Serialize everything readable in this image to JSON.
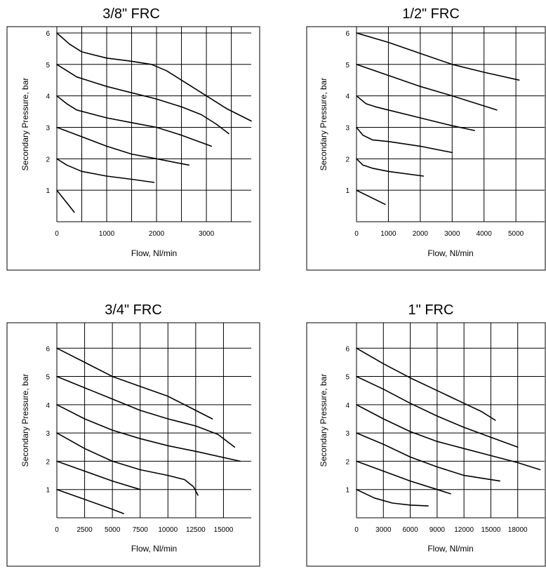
{
  "colors": {
    "line": "#000000",
    "grid": "#000000",
    "background": "#ffffff"
  },
  "chart_data": [
    {
      "type": "line",
      "title": "3/8\" FRC",
      "xlabel": "Flow,  Nl/min",
      "ylabel": "Secondary Pressure, bar",
      "xlim": [
        0,
        3900
      ],
      "ylim": [
        0,
        6.2
      ],
      "xticks": [
        0,
        1000,
        2000,
        3000
      ],
      "xtick_labels": [
        "0",
        "1000",
        "2000",
        "3000"
      ],
      "yticks": [
        1,
        2,
        3,
        4,
        5,
        6
      ],
      "ytick_labels": [
        "1",
        "2",
        "3",
        "4",
        "5",
        "6"
      ],
      "grid_x": [
        0,
        500,
        1000,
        1500,
        2000,
        2500,
        3000,
        3500
      ],
      "grid_y": [
        1,
        2,
        3,
        4,
        5,
        6
      ],
      "grid": true,
      "series": [
        {
          "x": [
            0,
            250,
            500,
            1000,
            1500,
            1900,
            2200,
            2600,
            3000,
            3400,
            3900
          ],
          "y": [
            6,
            5.65,
            5.4,
            5.2,
            5.1,
            5.0,
            4.8,
            4.4,
            4.0,
            3.6,
            3.2
          ]
        },
        {
          "x": [
            0,
            400,
            1000,
            1500,
            2000,
            2500,
            2900,
            3200,
            3450
          ],
          "y": [
            5,
            4.6,
            4.3,
            4.1,
            3.9,
            3.65,
            3.4,
            3.1,
            2.8
          ]
        },
        {
          "x": [
            0,
            200,
            400,
            1000,
            1500,
            2000,
            2500,
            3100
          ],
          "y": [
            4,
            3.75,
            3.55,
            3.3,
            3.15,
            3.0,
            2.75,
            2.4
          ]
        },
        {
          "x": [
            0,
            500,
            1000,
            1500,
            2000,
            2650
          ],
          "y": [
            3,
            2.7,
            2.4,
            2.15,
            2.0,
            1.8
          ]
        },
        {
          "x": [
            0,
            200,
            500,
            1000,
            1500,
            1950
          ],
          "y": [
            2,
            1.8,
            1.6,
            1.45,
            1.35,
            1.25
          ]
        },
        {
          "x": [
            0,
            350
          ],
          "y": [
            1,
            0.3
          ]
        }
      ]
    },
    {
      "type": "line",
      "title": "1/2\" FRC",
      "xlabel": "Flow,  Nl/min",
      "ylabel": "Secondary Pressure,  bar",
      "xlim": [
        0,
        5900
      ],
      "ylim": [
        0,
        6.2
      ],
      "xticks": [
        0,
        1000,
        2000,
        3000,
        4000,
        5000
      ],
      "xtick_labels": [
        "0",
        "1000",
        "2000",
        "3000",
        "4000",
        "5000"
      ],
      "yticks": [
        1,
        2,
        3,
        4,
        5,
        6
      ],
      "ytick_labels": [
        "1",
        "2",
        "3",
        "4",
        "5",
        "6"
      ],
      "grid_x": [
        0,
        1000,
        2000,
        3000,
        4000,
        5000
      ],
      "grid_y": [
        1,
        2,
        3,
        4,
        5,
        6
      ],
      "grid": true,
      "series": [
        {
          "x": [
            0,
            1000,
            2000,
            3000,
            4000,
            5100
          ],
          "y": [
            6,
            5.7,
            5.35,
            5.0,
            4.75,
            4.5
          ]
        },
        {
          "x": [
            0,
            1000,
            2000,
            3000,
            4400
          ],
          "y": [
            5,
            4.65,
            4.3,
            4.0,
            3.55
          ]
        },
        {
          "x": [
            0,
            300,
            600,
            1000,
            2000,
            3000,
            3700
          ],
          "y": [
            4,
            3.75,
            3.65,
            3.55,
            3.3,
            3.05,
            2.9
          ]
        },
        {
          "x": [
            0,
            200,
            500,
            1000,
            2000,
            3000
          ],
          "y": [
            3,
            2.75,
            2.6,
            2.55,
            2.4,
            2.2
          ]
        },
        {
          "x": [
            0,
            200,
            500,
            1000,
            2100
          ],
          "y": [
            2,
            1.8,
            1.7,
            1.6,
            1.45
          ]
        },
        {
          "x": [
            0,
            900
          ],
          "y": [
            1,
            0.55
          ]
        }
      ]
    },
    {
      "type": "line",
      "title": "3/4\" FRC",
      "xlabel": "Flow, Nl/min",
      "ylabel": "Secondary Pressure, bar",
      "xlim": [
        0,
        17500
      ],
      "ylim": [
        0,
        6.9
      ],
      "xticks": [
        0,
        2500,
        5000,
        7500,
        10000,
        12500,
        15000
      ],
      "xtick_labels": [
        "0",
        "2500",
        "5000",
        "7500",
        "10000",
        "12500",
        "15000"
      ],
      "yticks": [
        1,
        2,
        3,
        4,
        5,
        6
      ],
      "ytick_labels": [
        "1",
        "2",
        "3",
        "4",
        "5",
        "6"
      ],
      "grid_x": [
        0,
        2500,
        5000,
        7500,
        10000,
        12500,
        15000
      ],
      "grid_y": [
        1,
        2,
        3,
        4,
        5,
        6
      ],
      "grid": true,
      "series": [
        {
          "x": [
            0,
            2500,
            5000,
            7500,
            10000,
            12000,
            14000
          ],
          "y": [
            6,
            5.5,
            5.0,
            4.65,
            4.3,
            3.9,
            3.5
          ]
        },
        {
          "x": [
            0,
            2500,
            5000,
            7500,
            10000,
            12500,
            14500,
            16000
          ],
          "y": [
            5,
            4.6,
            4.2,
            3.8,
            3.5,
            3.25,
            2.95,
            2.5
          ]
        },
        {
          "x": [
            0,
            2500,
            5000,
            7500,
            10000,
            12500,
            16500
          ],
          "y": [
            4,
            3.5,
            3.1,
            2.8,
            2.55,
            2.35,
            2.0
          ]
        },
        {
          "x": [
            0,
            2500,
            5000,
            7500,
            10000,
            11500,
            12300,
            12700
          ],
          "y": [
            3,
            2.45,
            2.0,
            1.7,
            1.5,
            1.35,
            1.1,
            0.8
          ]
        },
        {
          "x": [
            0,
            2500,
            5000,
            7500
          ],
          "y": [
            2,
            1.65,
            1.3,
            1.0
          ]
        },
        {
          "x": [
            0,
            2500,
            5000,
            6000
          ],
          "y": [
            1,
            0.65,
            0.3,
            0.15
          ]
        }
      ]
    },
    {
      "type": "line",
      "title": "1\" FRC",
      "xlabel": "Flow, Nl/min",
      "ylabel": "Secondary Pressure, bar",
      "xlim": [
        0,
        21000
      ],
      "ylim": [
        0,
        6.9
      ],
      "xticks": [
        0,
        3000,
        6000,
        9000,
        12000,
        15000,
        18000
      ],
      "xtick_labels": [
        "0",
        "3000",
        "6000",
        "9000",
        "12000",
        "15000",
        "18000"
      ],
      "yticks": [
        1,
        2,
        3,
        4,
        5,
        6
      ],
      "ytick_labels": [
        "1",
        "2",
        "3",
        "4",
        "5",
        "6"
      ],
      "grid_x": [
        0,
        3000,
        6000,
        9000,
        12000,
        15000,
        18000
      ],
      "grid_y": [
        1,
        2,
        3,
        4,
        5,
        6
      ],
      "grid": true,
      "series": [
        {
          "x": [
            0,
            3000,
            6000,
            9000,
            12000,
            14000,
            15500
          ],
          "y": [
            6,
            5.45,
            4.95,
            4.5,
            4.05,
            3.75,
            3.45
          ]
        },
        {
          "x": [
            0,
            3000,
            6000,
            9000,
            12000,
            15000,
            18000
          ],
          "y": [
            5,
            4.55,
            4.05,
            3.6,
            3.2,
            2.85,
            2.5
          ]
        },
        {
          "x": [
            0,
            3000,
            6000,
            9000,
            12000,
            15000,
            18000,
            20500
          ],
          "y": [
            4,
            3.5,
            3.05,
            2.7,
            2.45,
            2.2,
            1.95,
            1.7
          ]
        },
        {
          "x": [
            0,
            3000,
            6000,
            9000,
            12000,
            15000,
            16000
          ],
          "y": [
            3,
            2.6,
            2.15,
            1.8,
            1.5,
            1.35,
            1.3
          ]
        },
        {
          "x": [
            0,
            3000,
            6000,
            9000,
            10500
          ],
          "y": [
            2,
            1.65,
            1.3,
            1.0,
            0.85
          ]
        },
        {
          "x": [
            0,
            2000,
            4000,
            6000,
            8000
          ],
          "y": [
            1,
            0.7,
            0.52,
            0.45,
            0.42
          ]
        }
      ]
    }
  ]
}
